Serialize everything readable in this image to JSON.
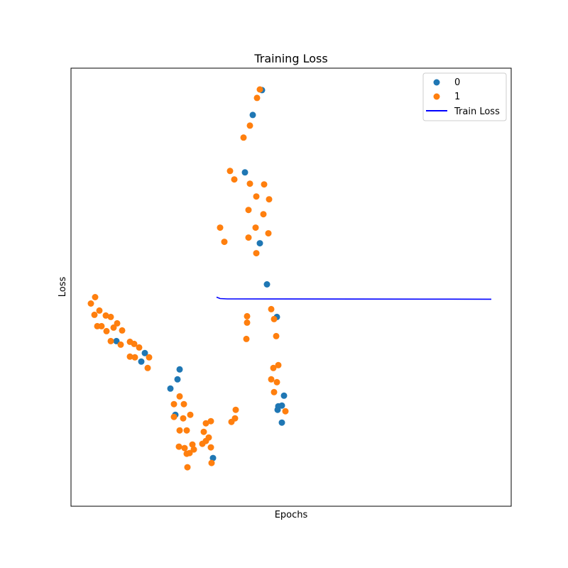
{
  "chart_data": {
    "type": "scatter",
    "title": "Training Loss",
    "xlabel": "Epochs",
    "ylabel": "Loss",
    "xlim": [
      0,
      620
    ],
    "ylim": [
      0,
      618
    ],
    "xticks": "hidden",
    "yticks": "hidden",
    "grid": false,
    "legend_position": "top-right",
    "series": [
      {
        "name": "0",
        "type": "scatter",
        "color": "#1f77b4",
        "points": [
          [
            269,
            587
          ],
          [
            256,
            552
          ],
          [
            245,
            471
          ],
          [
            266,
            371
          ],
          [
            276,
            313
          ],
          [
            290,
            267
          ],
          [
            64,
            233
          ],
          [
            104,
            216
          ],
          [
            99,
            204
          ],
          [
            153,
            193
          ],
          [
            150,
            179
          ],
          [
            140,
            166
          ],
          [
            147,
            129
          ],
          [
            200,
            68
          ],
          [
            292,
            141
          ],
          [
            297,
            118
          ],
          [
            300,
            156
          ],
          [
            297,
            142
          ],
          [
            291,
            136
          ]
        ]
      },
      {
        "name": "1",
        "type": "scatter",
        "color": "#ff7f0e",
        "points": [
          [
            266,
            588
          ],
          [
            262,
            576
          ],
          [
            252,
            537
          ],
          [
            243,
            520
          ],
          [
            224,
            473
          ],
          [
            230,
            461
          ],
          [
            252,
            455
          ],
          [
            272,
            454
          ],
          [
            261,
            437
          ],
          [
            279,
            433
          ],
          [
            250,
            418
          ],
          [
            271,
            412
          ],
          [
            210,
            393
          ],
          [
            260,
            393
          ],
          [
            216,
            373
          ],
          [
            250,
            379
          ],
          [
            278,
            385
          ],
          [
            261,
            357
          ],
          [
            34,
            295
          ],
          [
            28,
            286
          ],
          [
            40,
            276
          ],
          [
            49,
            269
          ],
          [
            33,
            270
          ],
          [
            56,
            267
          ],
          [
            65,
            258
          ],
          [
            37,
            254
          ],
          [
            43,
            254
          ],
          [
            60,
            252
          ],
          [
            50,
            247
          ],
          [
            72,
            248
          ],
          [
            56,
            233
          ],
          [
            83,
            232
          ],
          [
            89,
            229
          ],
          [
            70,
            228
          ],
          [
            96,
            224
          ],
          [
            83,
            211
          ],
          [
            90,
            210
          ],
          [
            110,
            210
          ],
          [
            108,
            195
          ],
          [
            248,
            268
          ],
          [
            248,
            259
          ],
          [
            247,
            236
          ],
          [
            282,
            278
          ],
          [
            286,
            264
          ],
          [
            289,
            240
          ],
          [
            285,
            195
          ],
          [
            292,
            199
          ],
          [
            282,
            179
          ],
          [
            290,
            175
          ],
          [
            286,
            161
          ],
          [
            232,
            136
          ],
          [
            231,
            124
          ],
          [
            226,
            119
          ],
          [
            145,
            144
          ],
          [
            153,
            155
          ],
          [
            159,
            144
          ],
          [
            145,
            126
          ],
          [
            158,
            124
          ],
          [
            168,
            129
          ],
          [
            153,
            107
          ],
          [
            163,
            107
          ],
          [
            152,
            84
          ],
          [
            160,
            82
          ],
          [
            171,
            87
          ],
          [
            163,
            74
          ],
          [
            198,
            61
          ],
          [
            164,
            55
          ],
          [
            167,
            75
          ],
          [
            173,
            80
          ],
          [
            185,
            88
          ],
          [
            190,
            92
          ],
          [
            197,
            83
          ],
          [
            187,
            105
          ],
          [
            194,
            97
          ],
          [
            197,
            120
          ],
          [
            190,
            117
          ],
          [
            302,
            134
          ]
        ]
      },
      {
        "name": "Train Loss",
        "type": "line",
        "color": "#0000ff",
        "points": [
          [
            205,
            295
          ],
          [
            210,
            293
          ],
          [
            220,
            292.5
          ],
          [
            300,
            292.4
          ],
          [
            400,
            292.3
          ],
          [
            500,
            292.2
          ],
          [
            592,
            292.1
          ]
        ]
      }
    ]
  }
}
